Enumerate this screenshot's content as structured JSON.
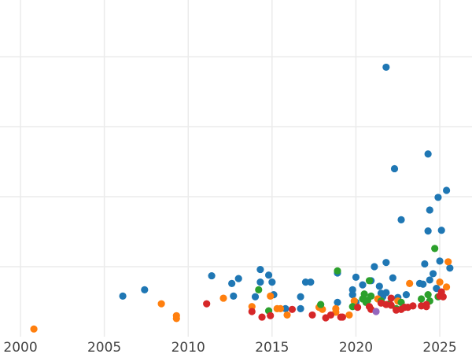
{
  "chart_data": {
    "type": "scatter",
    "title": "",
    "xlabel": "",
    "ylabel": "",
    "xlim": [
      1998.78,
      2026.92
    ],
    "ylim": [
      0,
      4.81
    ],
    "x_ticks": [
      2000,
      2005,
      2010,
      2015,
      2020,
      2025
    ],
    "x_tick_labels": [
      "2000",
      "2005",
      "2010",
      "2015",
      "2020",
      "2025"
    ],
    "y_gridlines": [
      1,
      2,
      3,
      4
    ],
    "grid": true,
    "series": [
      {
        "color": "#1f77b4",
        "points": [
          [
            2021.8,
            3.85
          ],
          [
            2024.3,
            2.61
          ],
          [
            2022.3,
            2.4
          ],
          [
            2025.4,
            2.09
          ],
          [
            2024.9,
            1.99
          ],
          [
            2024.4,
            1.81
          ],
          [
            2022.7,
            1.67
          ],
          [
            2024.3,
            1.51
          ],
          [
            2025.1,
            1.52
          ],
          [
            2025.0,
            1.08
          ],
          [
            2021.8,
            1.06
          ],
          [
            2021.1,
            1.0
          ],
          [
            2024.1,
            1.04
          ],
          [
            2025.6,
            0.98
          ],
          [
            2014.3,
            0.96
          ],
          [
            2018.9,
            0.91
          ],
          [
            2024.6,
            0.9
          ],
          [
            2014.8,
            0.88
          ],
          [
            2011.4,
            0.87
          ],
          [
            2020.0,
            0.85
          ],
          [
            2022.2,
            0.84
          ],
          [
            2013.0,
            0.83
          ],
          [
            2014.3,
            0.78
          ],
          [
            2015.0,
            0.78
          ],
          [
            2012.6,
            0.76
          ],
          [
            2017.0,
            0.78
          ],
          [
            2017.3,
            0.78
          ],
          [
            2023.8,
            0.76
          ],
          [
            2024.0,
            0.75
          ],
          [
            2024.4,
            0.81
          ],
          [
            2020.9,
            0.8
          ],
          [
            2021.4,
            0.72
          ],
          [
            2019.8,
            0.67
          ],
          [
            2020.4,
            0.74
          ],
          [
            2024.8,
            0.69
          ],
          [
            2019.8,
            0.6
          ],
          [
            2021.5,
            0.62
          ],
          [
            2021.6,
            0.57
          ],
          [
            2006.1,
            0.58
          ],
          [
            2007.4,
            0.67
          ],
          [
            2012.7,
            0.58
          ],
          [
            2015.1,
            0.6
          ],
          [
            2014.0,
            0.57
          ],
          [
            2016.7,
            0.57
          ],
          [
            2023.0,
            0.6
          ],
          [
            2018.9,
            0.49
          ],
          [
            2020.0,
            0.49
          ],
          [
            2015.8,
            0.4
          ],
          [
            2016.7,
            0.4
          ],
          [
            2022.5,
            0.56
          ],
          [
            2021.8,
            0.63
          ]
        ]
      },
      {
        "color": "#ff7f0e",
        "points": [
          [
            2000.8,
            0.11
          ],
          [
            2008.4,
            0.47
          ],
          [
            2009.3,
            0.3
          ],
          [
            2009.3,
            0.26
          ],
          [
            2012.1,
            0.55
          ],
          [
            2013.8,
            0.43
          ],
          [
            2014.9,
            0.58
          ],
          [
            2015.3,
            0.4
          ],
          [
            2015.5,
            0.4
          ],
          [
            2015.9,
            0.31
          ],
          [
            2017.8,
            0.42
          ],
          [
            2018.0,
            0.39
          ],
          [
            2018.8,
            0.4
          ],
          [
            2018.8,
            0.35
          ],
          [
            2019.6,
            0.31
          ],
          [
            2023.2,
            0.76
          ],
          [
            2025.5,
            1.07
          ],
          [
            2025.0,
            0.78
          ],
          [
            2025.4,
            0.71
          ],
          [
            2019.9,
            0.51
          ],
          [
            2021.3,
            0.54
          ],
          [
            2022.5,
            0.51
          ]
        ]
      },
      {
        "color": "#2ca02c",
        "points": [
          [
            2014.2,
            0.67
          ],
          [
            2014.8,
            0.37
          ],
          [
            2017.9,
            0.46
          ],
          [
            2018.9,
            0.94
          ],
          [
            2024.7,
            1.26
          ],
          [
            2020.8,
            0.8
          ],
          [
            2020.5,
            0.61
          ],
          [
            2020.4,
            0.54
          ],
          [
            2020.7,
            0.52
          ],
          [
            2020.9,
            0.58
          ],
          [
            2021.5,
            0.51
          ],
          [
            2022.0,
            0.47
          ],
          [
            2022.4,
            0.4
          ],
          [
            2022.7,
            0.49
          ],
          [
            2023.9,
            0.54
          ],
          [
            2024.3,
            0.6
          ],
          [
            2024.4,
            0.51
          ],
          [
            2024.9,
            0.57
          ],
          [
            2019.8,
            0.43
          ],
          [
            2020.6,
            0.49
          ]
        ]
      },
      {
        "color": "#d62728",
        "points": [
          [
            2011.1,
            0.47
          ],
          [
            2013.8,
            0.36
          ],
          [
            2014.4,
            0.28
          ],
          [
            2014.9,
            0.3
          ],
          [
            2016.2,
            0.39
          ],
          [
            2017.4,
            0.31
          ],
          [
            2018.2,
            0.27
          ],
          [
            2018.5,
            0.31
          ],
          [
            2019.1,
            0.28
          ],
          [
            2019.2,
            0.28
          ],
          [
            2020.1,
            0.42
          ],
          [
            2020.8,
            0.43
          ],
          [
            2020.9,
            0.39
          ],
          [
            2021.5,
            0.48
          ],
          [
            2021.8,
            0.46
          ],
          [
            2022.1,
            0.55
          ],
          [
            2022.1,
            0.45
          ],
          [
            2022.4,
            0.38
          ],
          [
            2022.7,
            0.39
          ],
          [
            2022.9,
            0.42
          ],
          [
            2023.1,
            0.42
          ],
          [
            2023.4,
            0.44
          ],
          [
            2023.9,
            0.44
          ],
          [
            2024.2,
            0.43
          ],
          [
            2024.2,
            0.46
          ],
          [
            2025.0,
            0.58
          ],
          [
            2025.2,
            0.57
          ],
          [
            2025.1,
            0.64
          ]
        ]
      },
      {
        "color": "#9467bd",
        "points": [
          [
            2021.2,
            0.36
          ]
        ]
      }
    ]
  }
}
